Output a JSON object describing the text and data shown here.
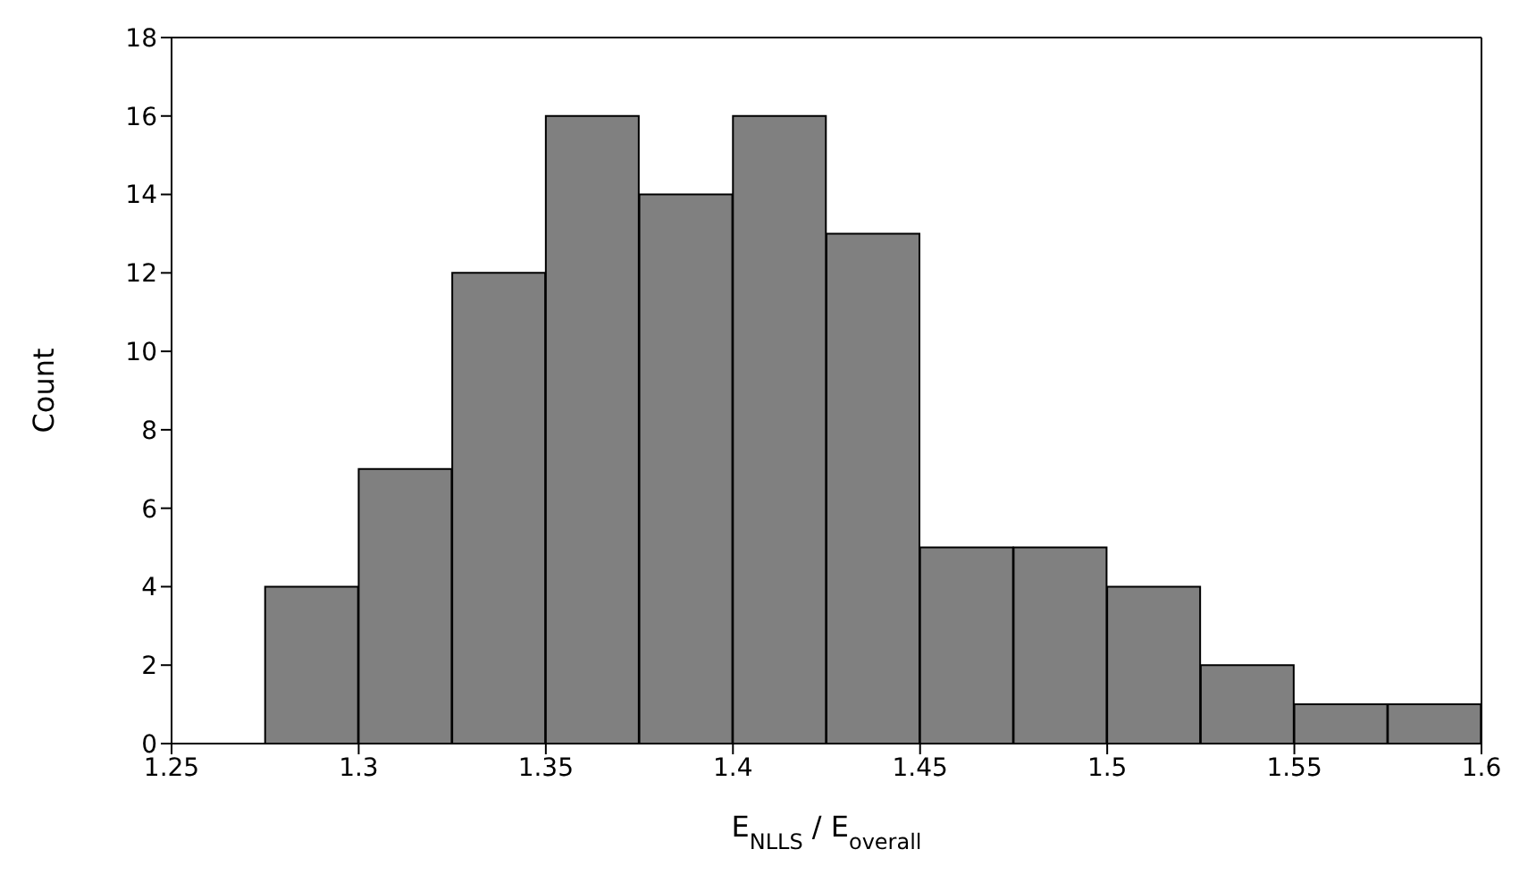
{
  "chart_data": {
    "type": "histogram",
    "xlabel": "E$_{NLLS}$ / E$_{overall}$",
    "ylabel": "Count",
    "bins": [
      1.275,
      1.3,
      1.325,
      1.35,
      1.375,
      1.4,
      1.425,
      1.45,
      1.475,
      1.5,
      1.525,
      1.55,
      1.575,
      1.6
    ],
    "values": [
      4,
      7,
      12,
      16,
      14,
      16,
      13,
      5,
      5,
      4,
      2,
      1,
      1
    ],
    "color": "#808080",
    "xlim": [
      1.25,
      1.6
    ],
    "xticks": [
      {
        "value": 1.25,
        "label": "1.25"
      },
      {
        "value": 1.3,
        "label": "1.3"
      },
      {
        "value": 1.35,
        "label": "1.35"
      },
      {
        "value": 1.4,
        "label": "1.4"
      },
      {
        "value": 1.45,
        "label": "1.45"
      },
      {
        "value": 1.5,
        "label": "1.5"
      },
      {
        "value": 1.55,
        "label": "1.55"
      },
      {
        "value": 1.6,
        "label": "1.6"
      }
    ],
    "ylim": [
      0,
      18
    ],
    "yticks": [
      0,
      2,
      4,
      6,
      8,
      10,
      12,
      14,
      16,
      18
    ],
    "grid": false,
    "legend": false
  }
}
